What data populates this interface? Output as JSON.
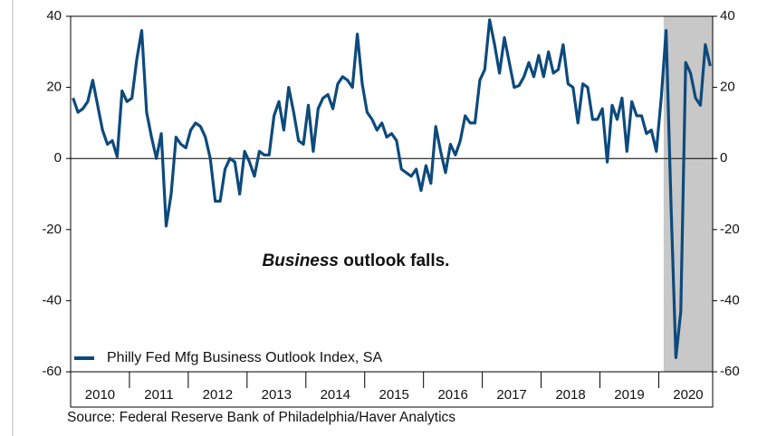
{
  "chart_data": {
    "type": "line",
    "annotation": {
      "emphasis": "Business",
      "text": "outlook falls."
    },
    "source": "Source:  Federal Reserve Bank of Philadelphia/Haver Analytics",
    "x": [
      "2010-01",
      "2010-02",
      "2010-03",
      "2010-04",
      "2010-05",
      "2010-06",
      "2010-07",
      "2010-08",
      "2010-09",
      "2010-10",
      "2010-11",
      "2010-12",
      "2011-01",
      "2011-02",
      "2011-03",
      "2011-04",
      "2011-05",
      "2011-06",
      "2011-07",
      "2011-08",
      "2011-09",
      "2011-10",
      "2011-11",
      "2011-12",
      "2012-01",
      "2012-02",
      "2012-03",
      "2012-04",
      "2012-05",
      "2012-06",
      "2012-07",
      "2012-08",
      "2012-09",
      "2012-10",
      "2012-11",
      "2012-12",
      "2013-01",
      "2013-02",
      "2013-03",
      "2013-04",
      "2013-05",
      "2013-06",
      "2013-07",
      "2013-08",
      "2013-09",
      "2013-10",
      "2013-11",
      "2013-12",
      "2014-01",
      "2014-02",
      "2014-03",
      "2014-04",
      "2014-05",
      "2014-06",
      "2014-07",
      "2014-08",
      "2014-09",
      "2014-10",
      "2014-11",
      "2014-12",
      "2015-01",
      "2015-02",
      "2015-03",
      "2015-04",
      "2015-05",
      "2015-06",
      "2015-07",
      "2015-08",
      "2015-09",
      "2015-10",
      "2015-11",
      "2015-12",
      "2016-01",
      "2016-02",
      "2016-03",
      "2016-04",
      "2016-05",
      "2016-06",
      "2016-07",
      "2016-08",
      "2016-09",
      "2016-10",
      "2016-11",
      "2016-12",
      "2017-01",
      "2017-02",
      "2017-03",
      "2017-04",
      "2017-05",
      "2017-06",
      "2017-07",
      "2017-08",
      "2017-09",
      "2017-10",
      "2017-11",
      "2017-12",
      "2018-01",
      "2018-02",
      "2018-03",
      "2018-04",
      "2018-05",
      "2018-06",
      "2018-07",
      "2018-08",
      "2018-09",
      "2018-10",
      "2018-11",
      "2018-12",
      "2019-01",
      "2019-02",
      "2019-03",
      "2019-04",
      "2019-05",
      "2019-06",
      "2019-07",
      "2019-08",
      "2019-09",
      "2019-10",
      "2019-11",
      "2019-12",
      "2020-01",
      "2020-02",
      "2020-03",
      "2020-04",
      "2020-05",
      "2020-06",
      "2020-07",
      "2020-08",
      "2020-09",
      "2020-10",
      "2020-11"
    ],
    "series": [
      {
        "name": "Philly Fed Mfg Business Outlook Index, SA",
        "color": "#0d4a7c",
        "values": [
          17,
          13,
          14,
          16,
          22,
          15,
          8,
          4,
          5,
          0.5,
          19,
          16,
          17,
          28,
          36,
          13,
          6,
          0,
          7,
          -19,
          -10,
          6,
          4,
          3,
          8,
          10,
          9,
          6,
          0,
          -12,
          -12,
          -3,
          0,
          -1,
          -10,
          2,
          -1,
          -5,
          2,
          1,
          1,
          12,
          16,
          8,
          20,
          13,
          5,
          4,
          15,
          2,
          14,
          17,
          18,
          14,
          21,
          23,
          22,
          20,
          35,
          21,
          13,
          11,
          8,
          10,
          6,
          7,
          5,
          -3,
          -4,
          -5,
          -3,
          -9,
          -2,
          -7,
          9,
          2,
          -4,
          4,
          1,
          5,
          12,
          10,
          10,
          22,
          25,
          39,
          32,
          24,
          34,
          27,
          20,
          20.5,
          23,
          27,
          23,
          29,
          23,
          30,
          24,
          25,
          32,
          21,
          20,
          10,
          21,
          20,
          11,
          11,
          14,
          -1,
          15,
          11,
          17,
          2,
          16,
          12,
          12,
          7,
          8,
          2,
          17,
          36,
          -13,
          -56,
          -43,
          27,
          24,
          17,
          15,
          32,
          26
        ]
      }
    ],
    "xlim": [
      "2010-01",
      "2020-11"
    ],
    "xticks": [
      2010,
      2011,
      2012,
      2013,
      2014,
      2015,
      2016,
      2017,
      2018,
      2019,
      2020
    ],
    "ylim": [
      -60,
      40
    ],
    "yticks": [
      -60,
      -40,
      -20,
      0,
      20,
      40
    ],
    "y2lim": [
      -60,
      40
    ],
    "y2ticks": [
      -60,
      -40,
      -20,
      0,
      20,
      40
    ],
    "hline": 0,
    "shaded": [
      "2020-02",
      "2020-11"
    ],
    "legend": "lower left"
  }
}
